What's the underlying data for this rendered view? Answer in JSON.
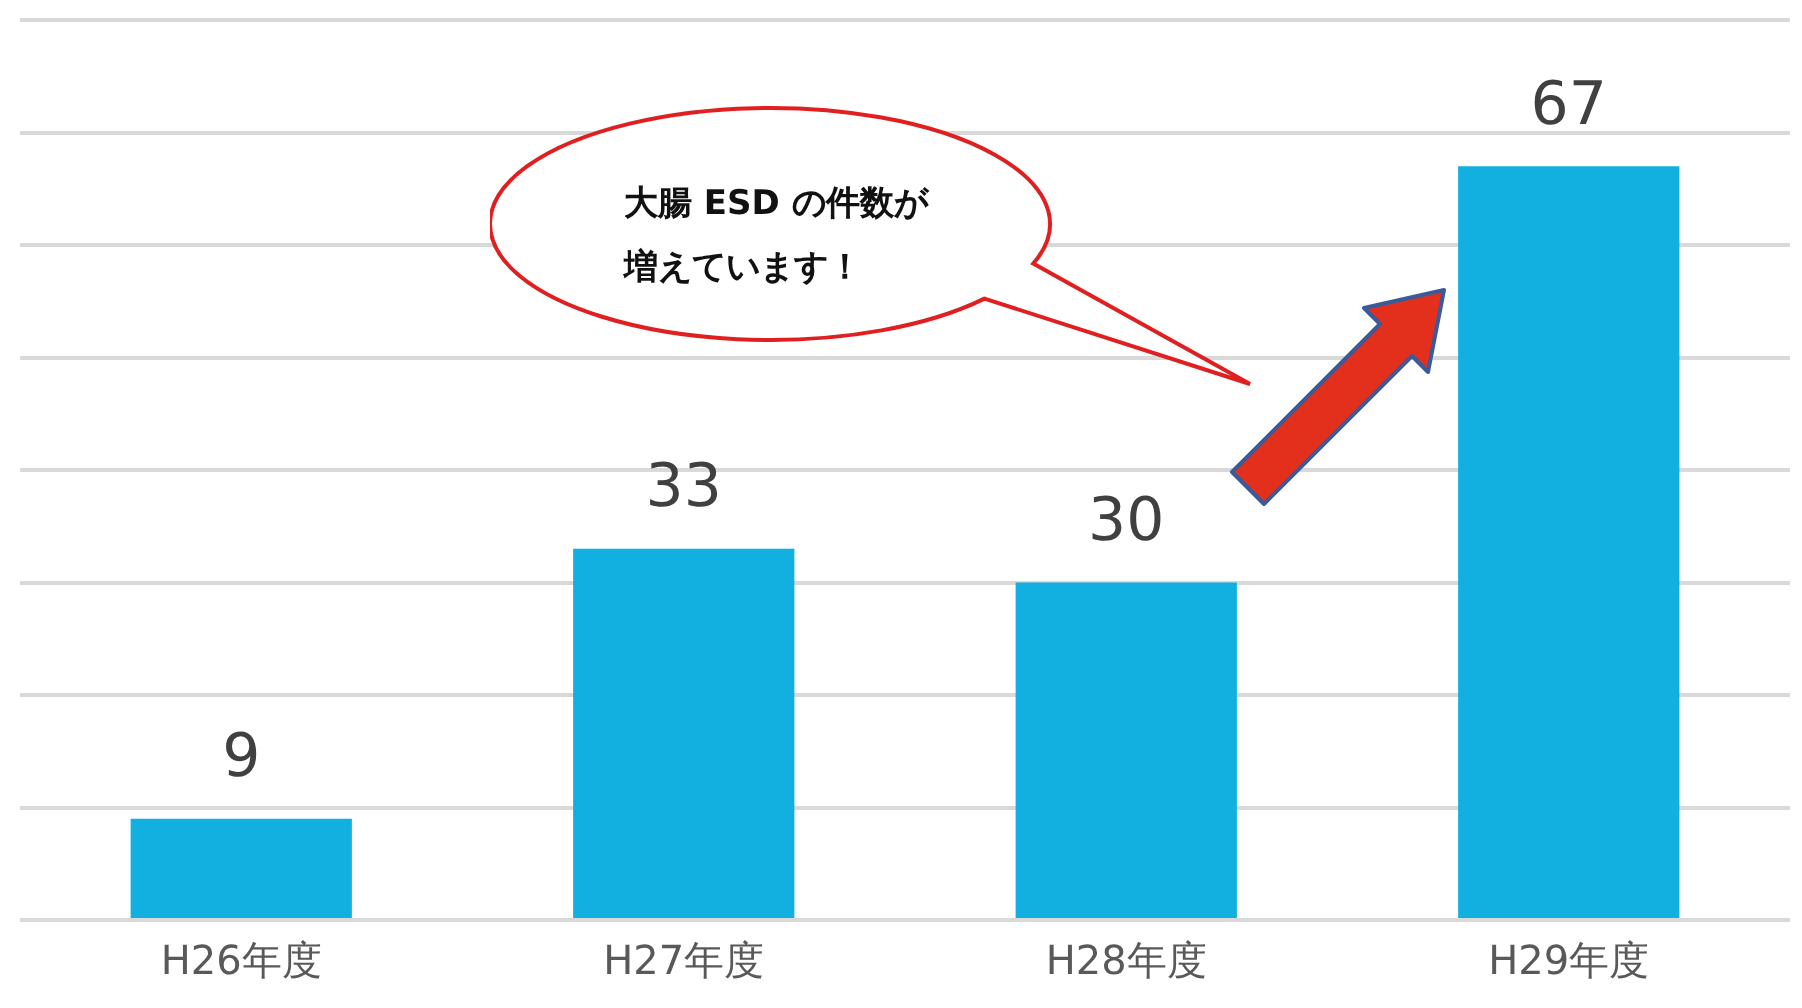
{
  "chart_data": {
    "type": "bar",
    "categories": [
      "H26年度",
      "H27年度",
      "H28年度",
      "H29年度"
    ],
    "values": [
      9,
      33,
      30,
      67
    ],
    "color": "#12b0e0",
    "ylim": [
      0,
      80
    ],
    "yticks": [
      {
        "value": 0,
        "label": null
      },
      {
        "value": 10,
        "label": null
      },
      {
        "value": 20,
        "label": null
      },
      {
        "value": 30,
        "label": null
      },
      {
        "value": 40,
        "label": null
      },
      {
        "value": 50,
        "label": null
      },
      {
        "value": 60,
        "label": null
      },
      {
        "value": 70,
        "label": null
      },
      {
        "value": 80,
        "label": null
      }
    ],
    "tick_labels": "x",
    "grid": "y",
    "legend": false,
    "data_labels": true,
    "annotations": [
      "大腸 ESD の件数が増えています！"
    ]
  }
}
